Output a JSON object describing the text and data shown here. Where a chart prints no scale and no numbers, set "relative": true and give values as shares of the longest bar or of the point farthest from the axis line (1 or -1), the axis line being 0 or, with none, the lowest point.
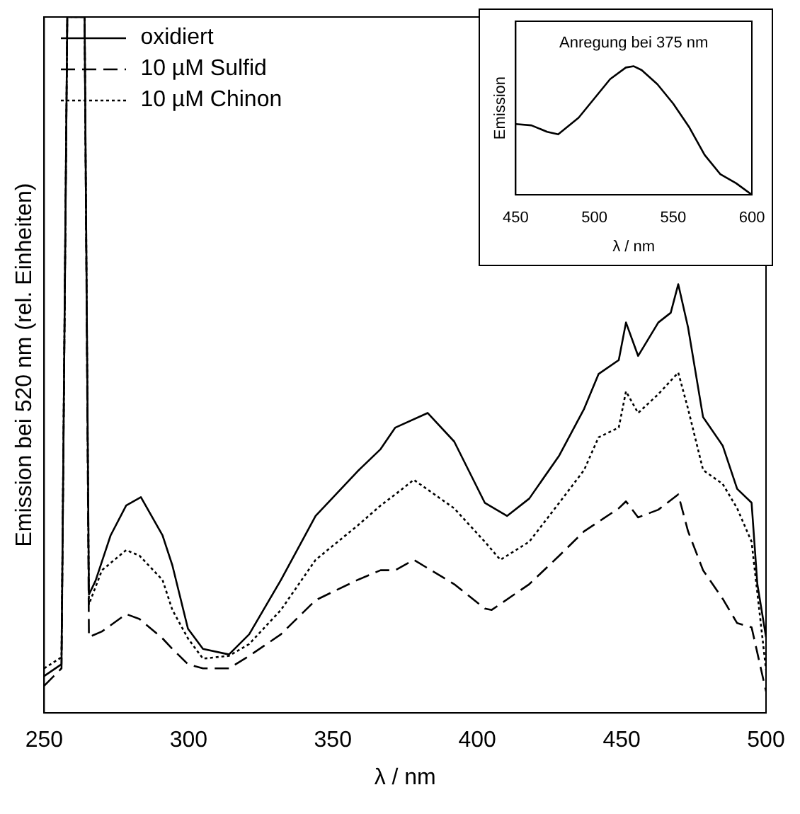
{
  "chart_data": [
    {
      "type": "line",
      "xlabel": "λ / nm",
      "ylabel": "Emission bei 520 nm (rel. Einheiten)",
      "relative": true,
      "xlim": [
        250,
        500
      ],
      "xticks": [
        250,
        300,
        350,
        400,
        450,
        500
      ],
      "legend": "top left",
      "grid": false,
      "marker": "none",
      "series": [
        {
          "name": "oxidiert",
          "color": "#000000",
          "line_style": "solid",
          "x": [
            250,
            256,
            258,
            264,
            265.5,
            267.8,
            273,
            278.4,
            283.5,
            291,
            294.4,
            299.8,
            305,
            314,
            321,
            332,
            344,
            358.5,
            366.5,
            371.6,
            382.8,
            392,
            402.6,
            410.3,
            418,
            428.4,
            437,
            442,
            449,
            451.5,
            455.7,
            462.7,
            467,
            469.6,
            473,
            478.2,
            485,
            490,
            495,
            497,
            500
          ],
          "values": [
            0.053,
            0.07,
            1,
            1,
            0.17,
            0.19,
            0.255,
            0.298,
            0.31,
            0.255,
            0.212,
            0.121,
            0.092,
            0.084,
            0.113,
            0.191,
            0.283,
            0.347,
            0.379,
            0.41,
            0.431,
            0.39,
            0.302,
            0.283,
            0.308,
            0.37,
            0.437,
            0.487,
            0.507,
            0.561,
            0.513,
            0.561,
            0.575,
            0.616,
            0.554,
            0.425,
            0.384,
            0.322,
            0.302,
            0.185,
            0.109
          ]
        },
        {
          "name": "10 µM Sulfid",
          "color": "#000000",
          "line_style": "dashed",
          "x": [
            250,
            256,
            258,
            264,
            265.5,
            270,
            278.4,
            283,
            291,
            294.4,
            299.8,
            305,
            314,
            321,
            332,
            344,
            358.5,
            366.5,
            371.6,
            378,
            392,
            402.6,
            405,
            418,
            428.4,
            437,
            449,
            451.5,
            455.7,
            462.7,
            469.6,
            473,
            478.2,
            485,
            490,
            495,
            500
          ],
          "values": [
            0.039,
            0.064,
            1,
            1,
            0.109,
            0.117,
            0.142,
            0.135,
            0.107,
            0.092,
            0.07,
            0.064,
            0.064,
            0.082,
            0.113,
            0.162,
            0.191,
            0.205,
            0.205,
            0.22,
            0.185,
            0.15,
            0.148,
            0.185,
            0.226,
            0.261,
            0.294,
            0.304,
            0.281,
            0.292,
            0.314,
            0.261,
            0.205,
            0.164,
            0.129,
            0.123,
            0.031
          ]
        },
        {
          "name": "10 µM Chinon",
          "color": "#000000",
          "line_style": "dotted",
          "x": [
            250,
            256,
            258,
            264,
            265.5,
            270,
            278.4,
            283,
            291,
            294.4,
            299.8,
            305,
            314,
            321,
            332,
            344,
            358.5,
            366.5,
            371.6,
            378,
            392,
            402.6,
            408,
            418,
            428.4,
            437,
            442,
            449,
            451.5,
            455.7,
            462.7,
            469.6,
            473,
            478.2,
            485,
            490,
            495,
            500
          ],
          "values": [
            0.064,
            0.08,
            1,
            1,
            0.156,
            0.205,
            0.234,
            0.226,
            0.191,
            0.148,
            0.107,
            0.078,
            0.082,
            0.099,
            0.148,
            0.22,
            0.269,
            0.298,
            0.314,
            0.335,
            0.294,
            0.246,
            0.22,
            0.246,
            0.302,
            0.349,
            0.396,
            0.41,
            0.462,
            0.431,
            0.458,
            0.489,
            0.437,
            0.349,
            0.329,
            0.294,
            0.246,
            0.062
          ]
        }
      ]
    },
    {
      "type": "line",
      "title": "Anregung bei 375 nm",
      "xlabel": "λ / nm",
      "ylabel": "Emission",
      "relative": true,
      "xlim": [
        450,
        600
      ],
      "xticks": [
        450,
        500,
        550,
        600
      ],
      "grid": false,
      "marker": "none",
      "series": [
        {
          "color": "#000000",
          "line_style": "solid",
          "x": [
            450,
            460,
            470,
            477,
            490,
            500,
            510,
            520,
            525,
            530,
            540,
            550,
            560,
            570,
            580,
            590,
            600
          ],
          "values": [
            0.55,
            0.54,
            0.49,
            0.47,
            0.6,
            0.75,
            0.9,
            0.99,
            1,
            0.97,
            0.86,
            0.71,
            0.53,
            0.31,
            0.16,
            0.09,
            0
          ]
        }
      ]
    }
  ]
}
